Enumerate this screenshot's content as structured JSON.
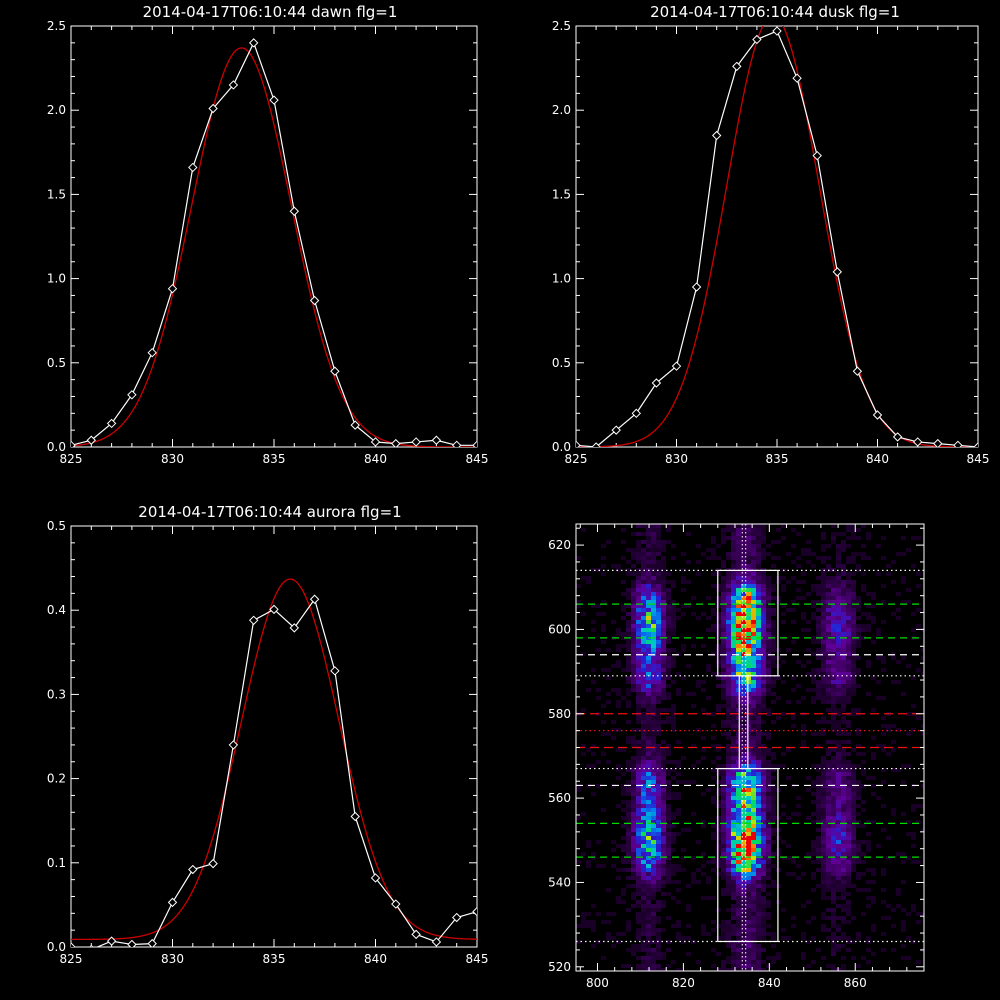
{
  "colors": {
    "background": "#000000",
    "axes": "#ffffff",
    "data_line": "#ffffff",
    "fit_line": "#cc0000",
    "green_dash": "#00dd00",
    "red_dash": "#ee1111",
    "white_dash": "#ffffff"
  },
  "chart_data": [
    {
      "id": "dawn",
      "type": "line",
      "title": "2014-04-17T06:10:44 dawn flg=1",
      "xlim": [
        825,
        845
      ],
      "ylim": [
        0,
        2.5
      ],
      "xticks": [
        "825",
        "830",
        "835",
        "840",
        "845"
      ],
      "yticks": [
        "0.0",
        "0.5",
        "1.0",
        "1.5",
        "2.0",
        "2.5"
      ],
      "series": [
        {
          "style": "white-diamonds",
          "x": [
            825,
            826,
            827,
            828,
            829,
            830,
            831,
            832,
            833,
            834,
            835,
            836,
            837,
            838,
            839,
            840,
            841,
            842,
            843,
            844,
            845
          ],
          "y": [
            0.01,
            0.04,
            0.14,
            0.31,
            0.56,
            0.94,
            1.66,
            2.01,
            2.15,
            2.4,
            2.06,
            1.4,
            0.87,
            0.45,
            0.13,
            0.03,
            0.02,
            0.03,
            0.04,
            0.01,
            0.01
          ]
        },
        {
          "style": "red-fit",
          "peak": 2.37,
          "center": 833.4,
          "sigma": 2.45,
          "baseline": 0.0
        }
      ]
    },
    {
      "id": "dusk",
      "type": "line",
      "title": "2014-04-17T06:10:44 dusk flg=1",
      "xlim": [
        825,
        845
      ],
      "ylim": [
        0,
        2.5
      ],
      "xticks": [
        "825",
        "830",
        "835",
        "840",
        "845"
      ],
      "yticks": [
        "0.0",
        "0.5",
        "1.0",
        "1.5",
        "2.0",
        "2.5"
      ],
      "series": [
        {
          "style": "white-diamonds",
          "x": [
            825,
            826,
            827,
            828,
            829,
            830,
            831,
            832,
            833,
            834,
            835,
            836,
            837,
            838,
            839,
            840,
            841,
            842,
            843,
            844,
            845
          ],
          "y": [
            0.01,
            0.0,
            0.1,
            0.2,
            0.38,
            0.48,
            0.95,
            1.85,
            2.26,
            2.42,
            2.47,
            2.19,
            1.73,
            1.04,
            0.45,
            0.19,
            0.06,
            0.03,
            0.02,
            0.01,
            0.0
          ]
        },
        {
          "style": "red-fit",
          "peak": 2.56,
          "center": 834.8,
          "sigma": 2.3,
          "baseline": 0.0
        }
      ]
    },
    {
      "id": "aurora",
      "type": "line",
      "title": "2014-04-17T06:10:44 aurora flg=1",
      "xlim": [
        825,
        845
      ],
      "ylim": [
        0,
        0.5
      ],
      "xticks": [
        "825",
        "830",
        "835",
        "840",
        "845"
      ],
      "yticks": [
        "0.0",
        "0.1",
        "0.2",
        "0.3",
        "0.4",
        "0.5"
      ],
      "series": [
        {
          "style": "white-diamonds",
          "x": [
            825,
            826,
            827,
            828,
            829,
            830,
            831,
            832,
            833,
            834,
            835,
            836,
            837,
            838,
            839,
            840,
            841,
            842,
            843,
            844,
            845
          ],
          "y": [
            0.0,
            -0.003,
            0.007,
            0.003,
            0.004,
            0.053,
            0.092,
            0.099,
            0.24,
            0.388,
            0.401,
            0.379,
            0.413,
            0.328,
            0.155,
            0.082,
            0.051,
            0.015,
            0.006,
            0.035,
            0.042
          ]
        },
        {
          "style": "red-fit",
          "peak": 0.428,
          "center": 835.8,
          "sigma": 2.4,
          "baseline": 0.009
        }
      ]
    },
    {
      "id": "spectrogram",
      "type": "heatmap",
      "title": "",
      "xlim": [
        795,
        876
      ],
      "ylim": [
        519,
        625
      ],
      "xticks": [
        "800",
        "820",
        "840",
        "860"
      ],
      "yticks": [
        "520",
        "540",
        "560",
        "580",
        "600",
        "620"
      ],
      "emission_columns": [
        {
          "x": 812,
          "width": 2.3,
          "strength": 0.55
        },
        {
          "x": 834.5,
          "width": 2.6,
          "strength": 1.0
        },
        {
          "x": 856,
          "width": 2.5,
          "strength": 0.28
        }
      ],
      "bright_bands": [
        {
          "y_from": 589,
          "y_to": 607,
          "peak_y": 601
        },
        {
          "y_from": 545,
          "y_to": 564,
          "peak_y": 550
        }
      ],
      "boxes": [
        {
          "x_from": 828,
          "x_to": 842,
          "y_from": 589,
          "y_to": 614
        },
        {
          "x_from": 828,
          "x_to": 842,
          "y_from": 526,
          "y_to": 567
        }
      ],
      "connector_x": [
        833,
        835
      ],
      "vertical_dotted_x": [
        833.7,
        834.5
      ],
      "horizontal_lines": [
        {
          "y": 614,
          "style": "white-dotted"
        },
        {
          "y": 606,
          "style": "green-dashed"
        },
        {
          "y": 598,
          "style": "green-dashed"
        },
        {
          "y": 594,
          "style": "white-dashed"
        },
        {
          "y": 589,
          "style": "white-dotted"
        },
        {
          "y": 580,
          "style": "red-dashed"
        },
        {
          "y": 576,
          "style": "red-dotted"
        },
        {
          "y": 572,
          "style": "red-dashed"
        },
        {
          "y": 567,
          "style": "white-dotted"
        },
        {
          "y": 563,
          "style": "white-dashed"
        },
        {
          "y": 554,
          "style": "green-dashed"
        },
        {
          "y": 546,
          "style": "green-dashed"
        },
        {
          "y": 526,
          "style": "white-dotted"
        }
      ]
    }
  ]
}
